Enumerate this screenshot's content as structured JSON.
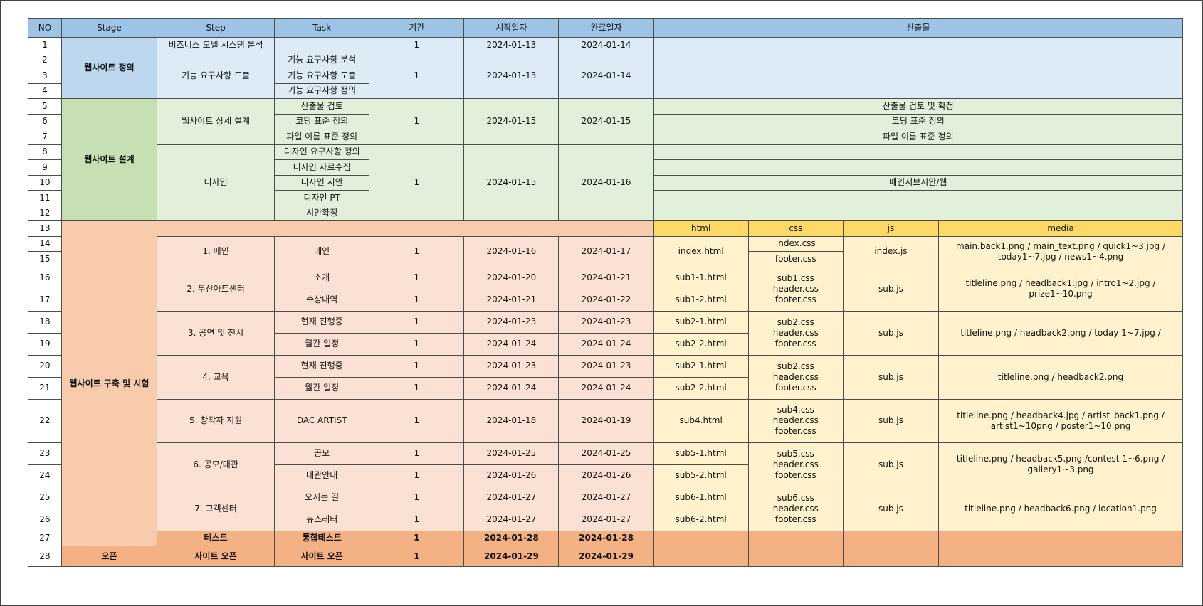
{
  "headers": [
    "NO",
    "Stage",
    "Step",
    "Task",
    "기간",
    "시작일자",
    "완료일자",
    "산출물"
  ],
  "nums": [
    "1",
    "2",
    "3",
    "4",
    "5",
    "6",
    "7",
    "8",
    "9",
    "10",
    "11",
    "12",
    "13",
    "14",
    "15",
    "16",
    "17",
    "18",
    "19",
    "20",
    "21",
    "22",
    "23",
    "24",
    "25",
    "26",
    "27",
    "28"
  ],
  "stages": {
    "s1": "웹사이트 정의",
    "s2": "웹사이트 설계",
    "s3": "웹사이트 구축 및 시험",
    "s4": "오픈"
  },
  "steps": {
    "r1": "비즈니스 모델 시스템 분석",
    "r2": "기능 요구사항 도출",
    "r5": "웹사이트 상세 설계",
    "r8": "디자인",
    "r14": "1. 메인",
    "r16": "2. 두산아트센터",
    "r18": "3. 공연 및 전시",
    "r20": "4. 교육",
    "r22": "5. 창작자 지원",
    "r23": "6. 공모/대관",
    "r25": "7. 고객센터",
    "r27": "테스트",
    "r28": "사이트 오픈"
  },
  "tasks": {
    "r2": "기능 요구사항 분석",
    "r3": "기능 요구사항 도출",
    "r4": "기능 요구사항 정의",
    "r5": "산출물 검토",
    "r6": "코딩 표준 정의",
    "r7": "파일 이름 표준 정의",
    "r8": "디자인 요구사항 정의",
    "r9": "디자인 자료수집",
    "r10": "디자인 시안",
    "r11": "디자인 PT",
    "r12": "시안확정",
    "r14": "메인",
    "r16": "소개",
    "r17": "수상내역",
    "r18": "현재 진행중",
    "r19": "월간 일정",
    "r20": "현재 진행중",
    "r21": "월간 일정",
    "r22": "DAC ARTIST",
    "r23": "공모",
    "r24": "대관안내",
    "r25": "오시는 길",
    "r26": "뉴스레터",
    "r27": "통합테스트",
    "r28": "사이트 오픈"
  },
  "dur": "1",
  "start": {
    "r1": "2024-01-13",
    "r2": "2024-01-13",
    "r5": "2024-01-15",
    "r8": "2024-01-15",
    "r14": "2024-01-16",
    "r16": "2024-01-20",
    "r17": "2024-01-21",
    "r18": "2024-01-23",
    "r19": "2024-01-24",
    "r20": "2024-01-23",
    "r21": "2024-01-24",
    "r22": "2024-01-18",
    "r23": "2024-01-25",
    "r24": "2024-01-26",
    "r25": "2024-01-27",
    "r26": "2024-01-27",
    "r27": "2024-01-28",
    "r28": "2024-01-29"
  },
  "end": {
    "r1": "2024-01-14",
    "r2": "2024-01-14",
    "r5": "2024-01-15",
    "r8": "2024-01-16",
    "r14": "2024-01-17",
    "r16": "2024-01-21",
    "r17": "2024-01-22",
    "r18": "2024-01-23",
    "r19": "2024-01-24",
    "r20": "2024-01-23",
    "r21": "2024-01-24",
    "r22": "2024-01-19",
    "r23": "2024-01-25",
    "r24": "2024-01-26",
    "r25": "2024-01-27",
    "r26": "2024-01-27",
    "r27": "2024-01-28",
    "r28": "2024-01-29"
  },
  "outputs": {
    "r5": "산출물 검토 및 확정",
    "r6": "코딩 표준 정의",
    "r7": "파일 이름 표준 정의",
    "r10": "메인서브시안/웹"
  },
  "sub_headers": {
    "html": "html",
    "css": "css",
    "js": "js",
    "media": "media"
  },
  "files": {
    "html14": "index.html",
    "css14": "index.css",
    "css15": "footer.css",
    "js14": "index.js",
    "media14": "main.back1.png / main_text.png / quick1~3.jpg / today1~7.jpg / news1~4.png",
    "html16": "sub1-1.html",
    "html17": "sub1-2.html",
    "css16": "sub1.css\nheader.css\nfooter.css",
    "js16": "sub.js",
    "media16": "titleline.png / headback1.jpg /  intro1~2.jpg / prize1~10.png",
    "html18": "sub2-1.html",
    "html19": "sub2-2.html",
    "css18": "sub2.css\nheader.css\nfooter.css",
    "js18": "sub.js",
    "media18": "titleline.png / headback2.png / today 1~7.jpg /",
    "html20": "sub2-1.html",
    "html21": "sub2-2.html",
    "css20": "sub2.css\nheader.css\nfooter.css",
    "js20": "sub.js",
    "media20": "titleline.png / headback2.png",
    "html22": "sub4.html",
    "css22": "sub4.css\nheader.css\nfooter.css",
    "js22": "sub.js",
    "media22": "titleline.png / headback4.jpg / artist_back1.png / artist1~10png /  poster1~10.png",
    "html23": "sub5-1.html",
    "html24": "sub5-2.html",
    "css23": "sub5.css\nheader.css\nfooter.css",
    "js23": "sub.js",
    "media23": "titleline.png / headback5.png /contest 1~6.png / gallery1~3.png",
    "html25": "sub6-1.html",
    "html26": "sub6-2.html",
    "css25": "sub6.css\nheader.css\nfooter.css",
    "js25": "sub.js",
    "media25": "titleline.png / headback6.png / location1.png"
  }
}
